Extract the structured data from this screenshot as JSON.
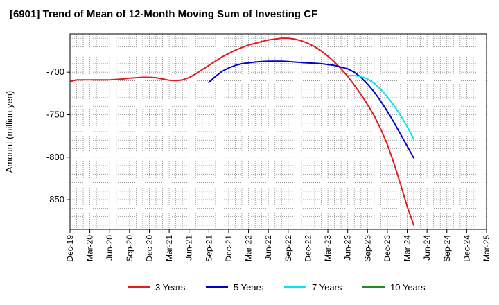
{
  "chart_data": {
    "type": "line",
    "title": "[6901]  Trend of Mean of 12-Month Moving Sum of Investing CF",
    "xlabel": "",
    "ylabel": "Amount (million yen)",
    "ylim": [
      -885,
      -655
    ],
    "yticks": [
      -700,
      -750,
      -800,
      -850
    ],
    "x_ticks": [
      "Dec-19",
      "Mar-20",
      "Jun-20",
      "Sep-20",
      "Dec-20",
      "Mar-21",
      "Jun-21",
      "Sep-21",
      "Dec-21",
      "Mar-22",
      "Jun-22",
      "Sep-22",
      "Dec-22",
      "Mar-23",
      "Jun-23",
      "Sep-23",
      "Dec-23",
      "Mar-24",
      "Jun-24",
      "Sep-24",
      "Dec-24",
      "Mar-25"
    ],
    "grid": true,
    "legend_position": "bottom",
    "series": [
      {
        "name": "3 Years",
        "color": "#e41a1c",
        "values": [
          -711,
          -709,
          -709,
          -709,
          -709,
          -709,
          -709,
          -708.5,
          -708,
          -707,
          -706.5,
          -706,
          -706,
          -706.5,
          -708,
          -709.5,
          -710,
          -709,
          -706.5,
          -702,
          -697,
          -692,
          -687,
          -682,
          -678,
          -674,
          -671,
          -668,
          -666,
          -664,
          -662,
          -661,
          -660,
          -660,
          -661,
          -663,
          -666,
          -670,
          -675,
          -681,
          -688,
          -696,
          -705,
          -715,
          -726,
          -738,
          -751,
          -767,
          -785,
          -807,
          -832,
          -858,
          -880
        ]
      },
      {
        "name": "5 Years",
        "color": "#0000cc",
        "values": [
          null,
          null,
          null,
          null,
          null,
          null,
          null,
          null,
          null,
          null,
          null,
          null,
          null,
          null,
          null,
          null,
          null,
          null,
          null,
          null,
          null,
          -712,
          -705,
          -699,
          -695,
          -692,
          -690,
          -689,
          -688,
          -687.5,
          -687,
          -687,
          -687,
          -687.5,
          -688,
          -688.5,
          -689,
          -689.5,
          -690,
          -691,
          -692,
          -694,
          -696,
          -700,
          -706,
          -714,
          -723,
          -734,
          -746,
          -759,
          -773,
          -787,
          -801
        ]
      },
      {
        "name": "7 Years",
        "color": "#00e5ee",
        "values": [
          null,
          null,
          null,
          null,
          null,
          null,
          null,
          null,
          null,
          null,
          null,
          null,
          null,
          null,
          null,
          null,
          null,
          null,
          null,
          null,
          null,
          null,
          null,
          null,
          null,
          null,
          null,
          null,
          null,
          null,
          null,
          null,
          null,
          null,
          null,
          null,
          null,
          null,
          null,
          null,
          null,
          null,
          -704,
          -704,
          -705,
          -708,
          -713,
          -720,
          -729,
          -739,
          -751,
          -764,
          -779
        ]
      },
      {
        "name": "10 Years",
        "color": "#228b22",
        "values": []
      }
    ]
  }
}
